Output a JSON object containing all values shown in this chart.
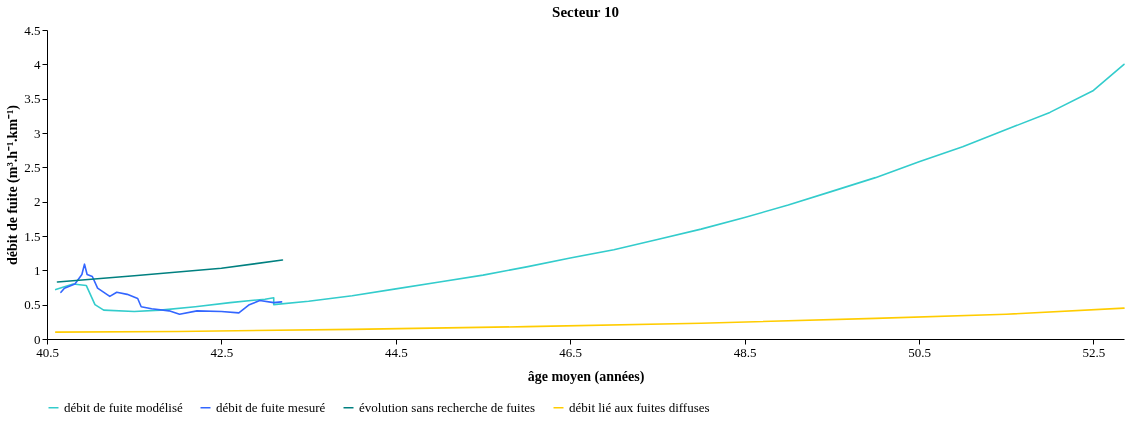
{
  "chart_data": {
    "type": "line",
    "title": "Secteur 10",
    "xlabel": "âge moyen (années)",
    "ylabel": "débit de fuite (m³.h⁻¹.km⁻¹)",
    "xlim": [
      40.5,
      52.85
    ],
    "xticks": [
      40.5,
      42.5,
      44.5,
      46.5,
      48.5,
      50.5,
      52.5
    ],
    "ylim": [
      0,
      4.5
    ],
    "yticks": [
      0,
      0.5,
      1,
      1.5,
      2,
      2.5,
      3,
      3.5,
      4,
      4.5
    ],
    "grid": false,
    "legend": "bottom",
    "line_style": "solid",
    "series": [
      {
        "name": "débit de fuite modélisé",
        "color": "#33cccc",
        "x": [
          40.6,
          40.8,
          40.95,
          41.05,
          41.15,
          41.5,
          41.8,
          42.2,
          42.6,
          43.0,
          43.1,
          43.1,
          43.5,
          44.0,
          44.5,
          45.0,
          45.5,
          46.0,
          46.5,
          47.0,
          47.5,
          48.0,
          48.5,
          49.0,
          49.5,
          50.0,
          50.5,
          51.0,
          51.5,
          52.0,
          52.5,
          52.85
        ],
        "values": [
          0.72,
          0.8,
          0.78,
          0.5,
          0.42,
          0.4,
          0.42,
          0.47,
          0.53,
          0.58,
          0.6,
          0.5,
          0.55,
          0.63,
          0.73,
          0.83,
          0.93,
          1.05,
          1.18,
          1.3,
          1.45,
          1.6,
          1.77,
          1.95,
          2.15,
          2.35,
          2.58,
          2.8,
          3.05,
          3.3,
          3.62,
          4.0
        ]
      },
      {
        "name": "débit de fuite mesuré",
        "color": "#3366ff",
        "x": [
          40.66,
          40.7,
          40.82,
          40.9,
          40.93,
          40.96,
          41.02,
          41.08,
          41.22,
          41.3,
          41.42,
          41.54,
          41.58,
          41.7,
          41.9,
          42.02,
          42.22,
          42.5,
          42.7,
          42.82,
          42.94,
          43.1,
          43.19
        ],
        "values": [
          0.68,
          0.74,
          0.8,
          0.94,
          1.09,
          0.94,
          0.91,
          0.74,
          0.62,
          0.68,
          0.65,
          0.59,
          0.47,
          0.44,
          0.41,
          0.36,
          0.41,
          0.4,
          0.38,
          0.5,
          0.56,
          0.53,
          0.54
        ]
      },
      {
        "name": "évolution sans recherche de fuites",
        "color": "#008080",
        "x": [
          40.62,
          41.5,
          42.5,
          43.2
        ],
        "values": [
          0.83,
          0.92,
          1.03,
          1.15
        ]
      },
      {
        "name": "débit lié aux fuites diffuses",
        "color": "#ffcc00",
        "x": [
          40.6,
          42.0,
          44.0,
          46.0,
          48.0,
          50.0,
          51.5,
          52.85
        ],
        "values": [
          0.1,
          0.11,
          0.14,
          0.18,
          0.23,
          0.3,
          0.36,
          0.45
        ]
      }
    ]
  }
}
